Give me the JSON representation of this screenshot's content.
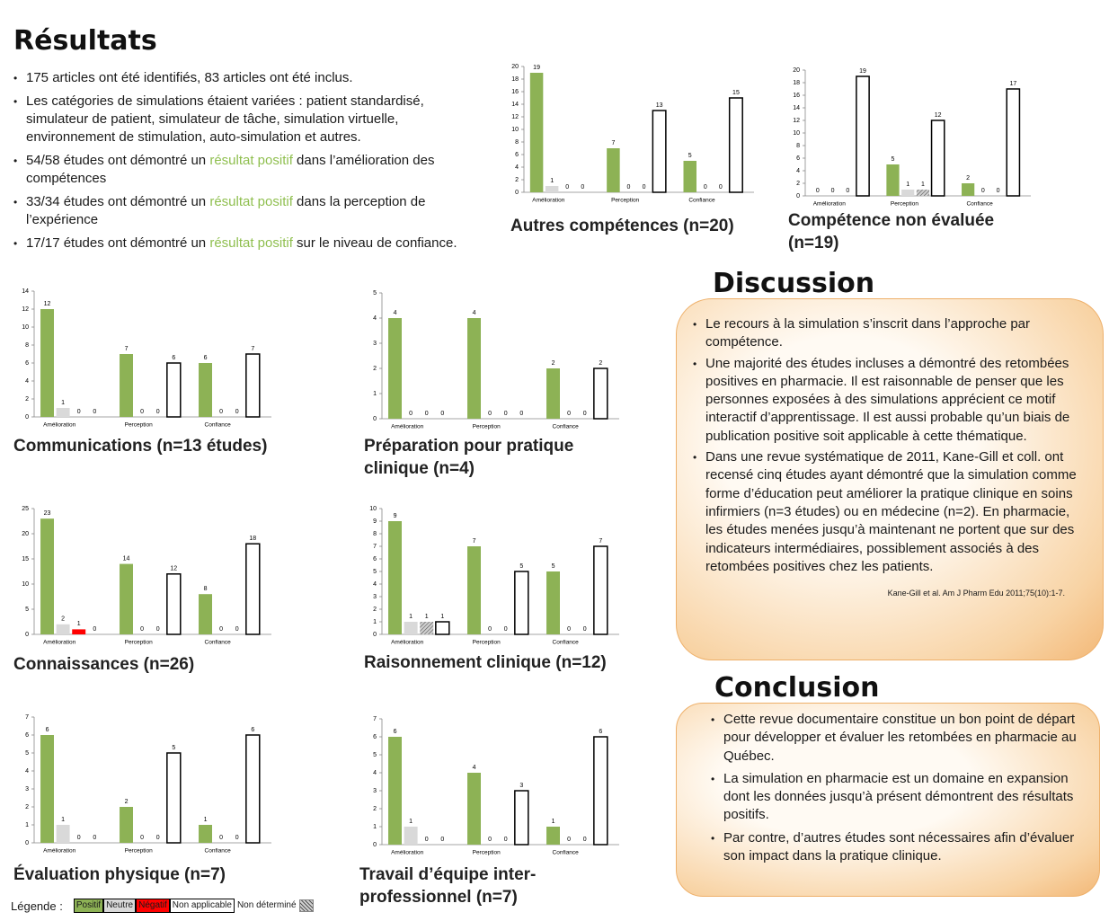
{
  "results": {
    "title": "Résultats",
    "highlight_color": "#8fbf4f",
    "bullets": [
      [
        "175 articles ont été identifiés, 83 articles ont été inclus."
      ],
      [
        "Les catégories de simulations étaient variées : patient standardisé, simulateur de patient, simulateur de tâche, simulation virtuelle, environnement de stimulation, auto-simulation et autres."
      ],
      [
        "54/58 études ont démontré un ",
        {
          "text": "résultat positif",
          "highlight": true
        },
        " dans l’amélioration des compétences"
      ],
      [
        "33/34 études ont démontré un ",
        {
          "text": "résultat positif",
          "highlight": true
        },
        " dans la perception de l’expérience"
      ],
      [
        "17/17 études ont démontré un ",
        {
          "text": "résultat positif",
          "highlight": true
        },
        " sur le niveau de confiance."
      ]
    ]
  },
  "chart_data": [
    {
      "type": "bar",
      "title": "Autres compétences (n=20)",
      "categories": [
        "Amélioration",
        "Perception",
        "Confiance"
      ],
      "ylim": [
        0,
        20
      ],
      "yticks": [
        0,
        2,
        4,
        6,
        8,
        10,
        12,
        14,
        16,
        18,
        20
      ],
      "series": [
        {
          "values": [
            19,
            7,
            5
          ]
        },
        {
          "values": [
            1,
            0,
            0
          ]
        },
        {
          "values": [
            0,
            0,
            0
          ]
        },
        {
          "values": [
            0,
            13,
            15
          ]
        },
        {
          "values": [
            null,
            null,
            null
          ]
        }
      ]
    },
    {
      "type": "bar",
      "title": "Compétence non évaluée (n=19)",
      "categories": [
        "Amélioration",
        "Perception",
        "Confiance"
      ],
      "ylim": [
        0,
        20
      ],
      "yticks": [
        0,
        2,
        4,
        6,
        8,
        10,
        12,
        14,
        16,
        18,
        20
      ],
      "series": [
        {
          "values": [
            0,
            5,
            2
          ]
        },
        {
          "values": [
            0,
            1,
            0
          ]
        },
        {
          "values": [
            null,
            null,
            null
          ]
        },
        {
          "values": [
            19,
            12,
            17
          ]
        },
        {
          "values": [
            0,
            1,
            0
          ]
        }
      ]
    },
    {
      "type": "bar",
      "title": "Communications (n=13 études)",
      "categories": [
        "Amélioration",
        "Perception",
        "Confiance"
      ],
      "ylim": [
        0,
        14
      ],
      "yticks": [
        0,
        2,
        4,
        6,
        8,
        10,
        12,
        14
      ],
      "series": [
        {
          "values": [
            12,
            7,
            6
          ]
        },
        {
          "values": [
            1,
            0,
            0
          ]
        },
        {
          "values": [
            0,
            0,
            0
          ]
        },
        {
          "values": [
            0,
            6,
            7
          ]
        },
        {
          "values": [
            null,
            null,
            null
          ]
        }
      ]
    },
    {
      "type": "bar",
      "title": "Préparation pour pratique clinique (n=4)",
      "categories": [
        "Amélioration",
        "Perception",
        "Confiance"
      ],
      "ylim": [
        0,
        5
      ],
      "yticks": [
        0,
        1,
        2,
        3,
        4,
        5
      ],
      "series": [
        {
          "values": [
            4,
            4,
            2
          ]
        },
        {
          "values": [
            0,
            0,
            0
          ]
        },
        {
          "values": [
            0,
            0,
            0
          ]
        },
        {
          "values": [
            0,
            0,
            2
          ]
        },
        {
          "values": [
            null,
            null,
            null
          ]
        }
      ]
    },
    {
      "type": "bar",
      "title": "Connaissances (n=26)",
      "categories": [
        "Amélioration",
        "Perception",
        "Confiance"
      ],
      "ylim": [
        0,
        25
      ],
      "yticks": [
        0,
        5,
        10,
        15,
        20,
        25
      ],
      "series": [
        {
          "values": [
            23,
            14,
            8
          ]
        },
        {
          "values": [
            2,
            0,
            0
          ]
        },
        {
          "values": [
            1,
            0,
            0
          ]
        },
        {
          "values": [
            0,
            12,
            18
          ]
        },
        {
          "values": [
            null,
            null,
            null
          ]
        }
      ]
    },
    {
      "type": "bar",
      "title": "Raisonnement clinique  (n=12)",
      "categories": [
        "Amélioration",
        "Perception",
        "Confiance"
      ],
      "ylim": [
        0,
        10
      ],
      "yticks": [
        0,
        1,
        2,
        3,
        4,
        5,
        6,
        7,
        8,
        9,
        10
      ],
      "series": [
        {
          "values": [
            9,
            7,
            5
          ]
        },
        {
          "values": [
            1,
            0,
            0
          ]
        },
        {
          "values": [
            null,
            null,
            null
          ]
        },
        {
          "values": [
            1,
            5,
            7
          ]
        },
        {
          "values": [
            1,
            0,
            0
          ]
        }
      ]
    },
    {
      "type": "bar",
      "title": "Évaluation physique (n=7)",
      "categories": [
        "Amélioration",
        "Perception",
        "Confiance"
      ],
      "ylim": [
        0,
        7
      ],
      "yticks": [
        0,
        1,
        2,
        3,
        4,
        5,
        6,
        7
      ],
      "series": [
        {
          "values": [
            6,
            2,
            1
          ]
        },
        {
          "values": [
            1,
            0,
            0
          ]
        },
        {
          "values": [
            0,
            0,
            0
          ]
        },
        {
          "values": [
            0,
            5,
            6
          ]
        },
        {
          "values": [
            null,
            null,
            null
          ]
        }
      ]
    },
    {
      "type": "bar",
      "title": "Travail d’équipe inter-professionnel (n=7)",
      "categories": [
        "Amélioration",
        "Perception",
        "Confiance"
      ],
      "ylim": [
        0,
        7
      ],
      "yticks": [
        0,
        1,
        2,
        3,
        4,
        5,
        6,
        7
      ],
      "series": [
        {
          "values": [
            6,
            4,
            1
          ]
        },
        {
          "values": [
            1,
            0,
            0
          ]
        },
        {
          "values": [
            0,
            0,
            0
          ]
        },
        {
          "values": [
            0,
            3,
            6
          ]
        },
        {
          "values": [
            null,
            null,
            null
          ]
        }
      ]
    }
  ],
  "legend": {
    "label": "Légende :",
    "items": [
      {
        "name": "Positif",
        "color": "#8db255"
      },
      {
        "name": "Neutre",
        "color": "#d9d9d9"
      },
      {
        "name": "Négatif",
        "color": "#ff0000"
      },
      {
        "name": "Non applicable",
        "color": "#ffffff",
        "outline": "#000000"
      },
      {
        "name": "Non déterminé",
        "color": "#d0d0d0",
        "hatched": true
      }
    ]
  },
  "discussion": {
    "title": "Discussion",
    "bullets": [
      "Le recours à la simulation s’inscrit dans l’approche par compétence.",
      "Une majorité des études incluses a démontré des retombées positives en pharmacie. Il est raisonnable de penser que les personnes exposées à des simulations apprécient ce motif interactif d’apprentissage. Il est aussi probable qu’un biais de publication positive soit applicable à cette thématique.",
      "Dans une revue systématique de 2011, Kane-Gill et coll. ont recensé cinq études ayant démontré que la simulation comme forme d’éducation peut améliorer la pratique clinique en soins infirmiers (n=3 études) ou en médecine (n=2). En pharmacie, les études menées jusqu’à maintenant ne portent que sur des indicateurs intermédiaires, possiblement associés à des retombées positives chez les patients."
    ],
    "citation": "Kane-Gill et al. Am J Pharm Edu 2011;75(10):1-7."
  },
  "conclusion": {
    "title": "Conclusion",
    "bullets": [
      "Cette revue documentaire constitue un bon point de départ pour développer et évaluer les retombées en pharmacie au Québec.",
      "La simulation en pharmacie est un domaine en expansion dont les données jusqu’à présent démontrent des résultats positifs.",
      "Par contre, d’autres études sont nécessaires afin d’évaluer son impact dans la pratique clinique."
    ]
  }
}
